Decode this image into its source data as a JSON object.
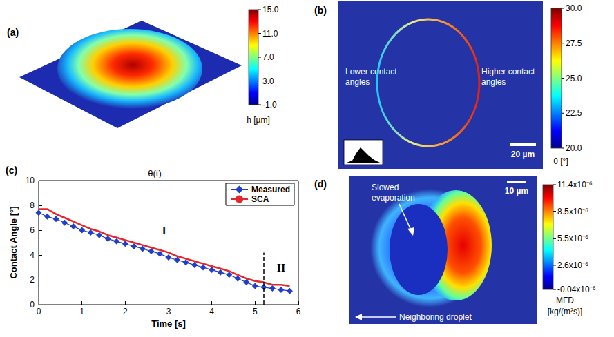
{
  "chart_data": {
    "type": "line",
    "panel": "(c)",
    "title": "θ(t)",
    "xlabel": "Time [s]",
    "ylabel": "Contact Angle [°]",
    "x": [
      0,
      0.2,
      0.4,
      0.6,
      0.8,
      1.0,
      1.2,
      1.4,
      1.6,
      1.8,
      2.0,
      2.2,
      2.4,
      2.6,
      2.8,
      3.0,
      3.2,
      3.4,
      3.6,
      3.8,
      4.0,
      4.2,
      4.4,
      4.6,
      4.8,
      5.0,
      5.2,
      5.4,
      5.6,
      5.8
    ],
    "series": [
      {
        "name": "Measured",
        "color": "#1f3fc8",
        "marker": "diamond",
        "line_style": "solid",
        "values": [
          7.4,
          7.1,
          6.9,
          6.6,
          6.3,
          6.0,
          5.8,
          5.6,
          5.3,
          5.1,
          4.9,
          4.7,
          4.5,
          4.3,
          4.1,
          3.8,
          3.6,
          3.4,
          3.2,
          3.0,
          2.8,
          2.6,
          2.4,
          2.1,
          1.8,
          1.5,
          1.4,
          1.3,
          1.2,
          1.1
        ]
      },
      {
        "name": "SCA",
        "color": "#e8262a",
        "marker": "none",
        "line_style": "solid",
        "values": [
          7.7,
          7.7,
          7.3,
          7.0,
          6.7,
          6.4,
          6.1,
          5.9,
          5.6,
          5.4,
          5.2,
          5.0,
          4.8,
          4.6,
          4.4,
          4.2,
          3.9,
          3.7,
          3.5,
          3.3,
          3.1,
          2.9,
          2.7,
          2.4,
          2.1,
          1.9,
          1.8,
          1.6,
          1.6,
          1.5
        ]
      }
    ],
    "xlim": [
      0,
      6
    ],
    "xticks": [
      0,
      1,
      2,
      3,
      4,
      5,
      6
    ],
    "ylim": [
      0,
      10
    ],
    "yticks": [
      0,
      2,
      4,
      6,
      8,
      10
    ],
    "grid": false,
    "legend": "upper right",
    "annotations": [
      {
        "text": "I",
        "x": 2.9,
        "y": 6.0
      },
      {
        "text": "II",
        "x": 5.6,
        "y": 3.0
      }
    ],
    "vline": {
      "x": 5.2,
      "y": [
        0,
        4.2
      ]
    }
  },
  "images": [
    {
      "panel": "(a)",
      "colorbar": {
        "range": [
          -1,
          15
        ],
        "title": "h [µm]",
        "ticks": [
          {
            "value": 15,
            "label": "15.0"
          },
          {
            "value": 11,
            "label": "11.0"
          },
          {
            "value": 7,
            "label": "7.0"
          },
          {
            "value": 3,
            "label": "3.0"
          },
          {
            "value": -1,
            "label": "-1.0"
          }
        ]
      }
    },
    {
      "panel": "(b)",
      "annotations": [
        "Lower contact angles",
        "Higher contact angles"
      ],
      "scalebar": "20 µm",
      "colorbar": {
        "range": [
          20,
          30
        ],
        "title": "θ [°]",
        "ticks": [
          {
            "value": 30,
            "label": "30.0"
          },
          {
            "value": 27.5,
            "label": "27.5"
          },
          {
            "value": 25,
            "label": "25.0"
          },
          {
            "value": 22.5,
            "label": "22.5"
          },
          {
            "value": 20,
            "label": "20.0"
          }
        ]
      }
    },
    {
      "panel": "(d)",
      "annotations": [
        "Slowed evaporation",
        "Neighboring droplet"
      ],
      "scalebar": "10 µm",
      "colorbar": {
        "range": [
          -4e-08,
          1.14e-05
        ],
        "title_lines": [
          "MFD",
          "[kg/(m²s)]"
        ],
        "ticks": [
          {
            "value": 1.14e-05,
            "label": "11.4x10⁻⁶"
          },
          {
            "value": 8.5e-06,
            "label": "8.5x10⁻⁶"
          },
          {
            "value": 5.5e-06,
            "label": "5.5x10⁻⁶"
          },
          {
            "value": 2.6e-06,
            "label": "2.6x10⁻⁶"
          },
          {
            "value": -4e-08,
            "label": "-0.04x10⁻⁶"
          }
        ]
      }
    }
  ]
}
